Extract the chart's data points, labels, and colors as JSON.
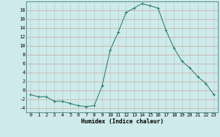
{
  "x": [
    0,
    1,
    2,
    3,
    4,
    5,
    6,
    7,
    8,
    9,
    10,
    11,
    12,
    13,
    14,
    15,
    16,
    17,
    18,
    19,
    20,
    21,
    22,
    23
  ],
  "y": [
    -1,
    -1.5,
    -1.5,
    -2.5,
    -2.5,
    -3,
    -3.5,
    -3.7,
    -3.5,
    1,
    9,
    13,
    17.5,
    18.5,
    19.5,
    19,
    18.5,
    13.5,
    9.5,
    6.5,
    5,
    3,
    1.5,
    -1
  ],
  "line_color": "#2a7d6e",
  "marker": "+",
  "marker_size": 3,
  "marker_lw": 0.8,
  "bg_color": "#ceeaea",
  "grid_color": "#b8d0d0",
  "grid_color_major": "#c8a0a0",
  "xlabel": "Humidex (Indice chaleur)",
  "xlim": [
    -0.5,
    23.5
  ],
  "ylim": [
    -5,
    20
  ],
  "yticks": [
    -4,
    -2,
    0,
    2,
    4,
    6,
    8,
    10,
    12,
    14,
    16,
    18
  ],
  "xticks": [
    0,
    1,
    2,
    3,
    4,
    5,
    6,
    7,
    8,
    9,
    10,
    11,
    12,
    13,
    14,
    15,
    16,
    17,
    18,
    19,
    20,
    21,
    22,
    23
  ],
  "tick_fontsize": 5,
  "xlabel_fontsize": 6
}
